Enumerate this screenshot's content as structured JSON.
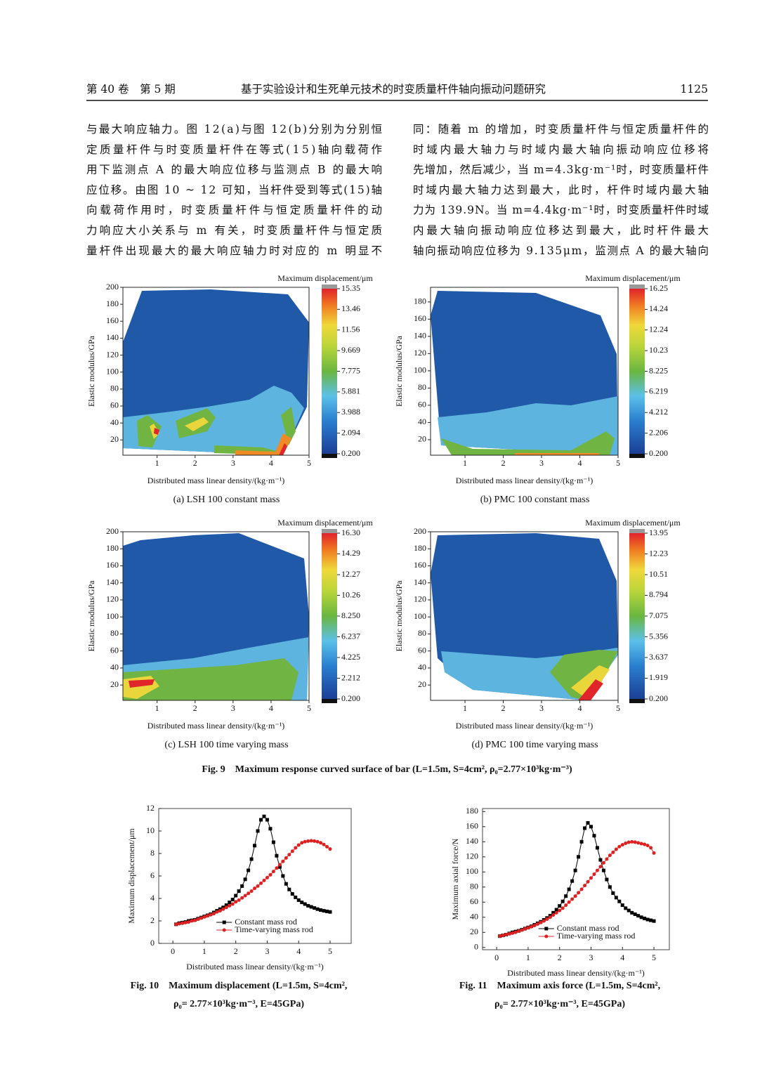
{
  "header": {
    "volume": "第 40 卷　第 5 期",
    "title": "基于实验设计和生死单元技术的时变质量杆件轴向振动问题研究",
    "page": "1125"
  },
  "text": {
    "left": [
      "与最大响应轴力。图 12(a)与图 12(b)分别为分别恒",
      "定质量杆件与时变质量杆件在等式(15)轴向载荷作",
      "用下监测点 A 的最大响应位移与监测点 B 的最大响",
      "应位移。由图 10 ~ 12 可知，当杆件受到等式(15)轴",
      "向载荷作用时，时变质量杆件与恒定质量杆件的动",
      "力响应大小关系与 m 有关，时变质量杆件与恒定质",
      "量杆件出现最大的最大响应轴力时对应的 m 明显不"
    ],
    "right": [
      "同：随着 m 的增加，时变质量杆件与恒定质量杆件的",
      "时域内最大轴力与时域内最大轴向振动响应位移将",
      "先增加，然后减少，当 m=4.3kg·m⁻¹时，时变质量杆件",
      "时域内最大轴力达到最大，此时，杆件时域内最大轴",
      "力为 139.9N。当 m=4.4kg·m⁻¹时，时变质量杆件时域",
      "内最大轴向振动响应位移达到最大，此时杆件最大",
      "轴向振动响应位移为 9.135μm，监测点 A 的最大轴向"
    ]
  },
  "figure9_caption": "Fig. 9　Maximum response curved surface of bar (L=1.5m, S=4cm², ρ₀=2.77×10³kg·m⁻³)",
  "chart_data": [
    {
      "type": "contour",
      "title": "(a) LSH 100 constant mass",
      "x_label": "Distributed mass linear density/(kg·m⁻¹)",
      "y_label": "Elastic modulus/GPa",
      "colorbar_label": "Maximum displacement/μm",
      "xlim": [
        0.1,
        5
      ],
      "xticks": [
        1,
        2,
        3,
        4,
        5
      ],
      "ylim": [
        2,
        200
      ],
      "yticks": [
        20,
        40,
        60,
        80,
        100,
        120,
        140,
        160,
        180,
        200
      ],
      "clim": [
        0.2,
        15.35
      ],
      "colorbar_ticks": [
        {
          "value": 0.2,
          "label": "0.200"
        },
        2.094,
        3.988,
        5.881,
        7.775,
        9.669,
        11.56,
        13.46,
        15.35
      ]
    },
    {
      "type": "contour",
      "title": "(b) PMC 100 constant mass",
      "x_label": "Distributed mass linear density/(kg·m⁻¹)",
      "y_label": "Elastic modulus/GPa",
      "colorbar_label": "Maximum displacement/μm",
      "xlim": [
        0.1,
        5
      ],
      "xticks": [
        1,
        2,
        3,
        4,
        5
      ],
      "ylim": [
        2,
        197
      ],
      "yticks": [
        20,
        40,
        60,
        80,
        100,
        120,
        140,
        160,
        180
      ],
      "clim": [
        0.2,
        16.25
      ],
      "colorbar_ticks": [
        {
          "value": 0.2,
          "label": "0.200"
        },
        2.206,
        4.212,
        6.219,
        8.225,
        10.23,
        12.24,
        14.24,
        16.25
      ]
    },
    {
      "type": "contour",
      "title": "(c) LSH 100 time varying mass",
      "x_label": "Distributed mass linear density/(kg·m⁻¹)",
      "y_label": "Elastic modulus/GPa",
      "colorbar_label": "Maximum displacement/μm",
      "xlim": [
        0.1,
        5
      ],
      "xticks": [
        1,
        2,
        3,
        4,
        5
      ],
      "ylim": [
        2,
        200
      ],
      "yticks": [
        20,
        40,
        60,
        80,
        100,
        120,
        140,
        160,
        180,
        200
      ],
      "clim": [
        0.2,
        16.3
      ],
      "colorbar_ticks": [
        {
          "value": 0.2,
          "label": "0.200"
        },
        2.212,
        4.225,
        6.237,
        {
          "value": 8.25,
          "label": "8.250"
        },
        10.26,
        12.27,
        14.29,
        {
          "value": 16.3,
          "label": "16.30"
        }
      ]
    },
    {
      "type": "contour",
      "title": "(d) PMC 100 time varying mass",
      "x_label": "Distributed mass linear density/(kg·m⁻¹)",
      "y_label": "Elastic modulus/GPa",
      "colorbar_label": "Maximum displacement/μm",
      "xlim": [
        0.1,
        5
      ],
      "xticks": [
        1,
        2,
        3,
        4,
        5
      ],
      "ylim": [
        2,
        200
      ],
      "yticks": [
        20,
        40,
        60,
        80,
        100,
        120,
        140,
        160,
        180,
        200
      ],
      "clim": [
        0.2,
        13.95
      ],
      "colorbar_ticks": [
        {
          "value": 0.2,
          "label": "0.200"
        },
        1.919,
        3.637,
        5.356,
        7.075,
        8.794,
        10.51,
        12.23,
        13.95
      ]
    },
    {
      "type": "line",
      "caption": [
        "Fig. 10　Maximum displacement (L=1.5m, S=4cm²,",
        "ρ₀= 2.77×10³kg·m⁻³, E=45GPa)"
      ],
      "x_label": "Distributed mass linear density/(kg·m⁻¹)",
      "y_label": "Maximum displacement/μm",
      "xlim": [
        -0.45,
        5.67
      ],
      "xticks": [
        0,
        1,
        2,
        3,
        4,
        5
      ],
      "ylim": [
        0,
        12
      ],
      "yticks": [
        0,
        2,
        4,
        6,
        8,
        10,
        12
      ],
      "legend": "lower right",
      "x": [
        0.1,
        0.2,
        0.3,
        0.4,
        0.5,
        0.6,
        0.7,
        0.8,
        0.9,
        1.0,
        1.1,
        1.2,
        1.3,
        1.4,
        1.5,
        1.6,
        1.7,
        1.8,
        1.9,
        2.0,
        2.1,
        2.2,
        2.3,
        2.4,
        2.5,
        2.6,
        2.7,
        2.8,
        2.9,
        3.0,
        3.1,
        3.2,
        3.3,
        3.4,
        3.5,
        3.6,
        3.7,
        3.8,
        3.9,
        4.0,
        4.1,
        4.2,
        4.3,
        4.4,
        4.5,
        4.6,
        4.7,
        4.8,
        4.9,
        5.0
      ],
      "series": [
        {
          "name": "Constant mass rod",
          "color": "#000000",
          "marker": "square",
          "values": [
            1.7,
            1.8,
            1.85,
            1.9,
            2.0,
            2.05,
            2.1,
            2.2,
            2.3,
            2.4,
            2.5,
            2.6,
            2.75,
            2.9,
            3.05,
            3.2,
            3.4,
            3.65,
            3.9,
            4.25,
            4.65,
            5.1,
            5.7,
            6.5,
            7.5,
            8.7,
            10.0,
            11.0,
            11.3,
            11.0,
            10.2,
            9.0,
            7.8,
            6.8,
            6.0,
            5.3,
            4.8,
            4.4,
            4.1,
            3.85,
            3.65,
            3.5,
            3.35,
            3.25,
            3.15,
            3.05,
            2.97,
            2.9,
            2.85,
            2.8
          ]
        },
        {
          "name": "Time-varying mass rod",
          "color": "#e02020",
          "marker": "circle",
          "values": [
            1.7,
            1.75,
            1.8,
            1.85,
            1.9,
            2.0,
            2.05,
            2.15,
            2.25,
            2.35,
            2.45,
            2.55,
            2.65,
            2.8,
            2.9,
            3.05,
            3.2,
            3.35,
            3.5,
            3.7,
            3.85,
            4.05,
            4.25,
            4.45,
            4.65,
            4.9,
            5.1,
            5.35,
            5.6,
            5.85,
            6.1,
            6.4,
            6.7,
            7.0,
            7.3,
            7.6,
            7.9,
            8.2,
            8.5,
            8.75,
            8.95,
            9.05,
            9.1,
            9.135,
            9.1,
            9.05,
            8.95,
            8.8,
            8.6,
            8.4
          ]
        }
      ]
    },
    {
      "type": "line",
      "caption": [
        "Fig. 11　Maximum axis force (L=1.5m, S=4cm²,",
        "ρ₀= 2.77×10³kg·m⁻³, E=45GPa)"
      ],
      "x_label": "Distributed mass linear density/(kg·m⁻¹)",
      "y_label": "Maximum axial force/N",
      "xlim": [
        -0.45,
        5.49
      ],
      "xticks": [
        0,
        1,
        2,
        3,
        4,
        5
      ],
      "ylim": [
        -3,
        184
      ],
      "yticks": [
        0,
        20,
        40,
        60,
        80,
        100,
        120,
        140,
        160,
        180
      ],
      "legend": "lower right",
      "x": [
        0.1,
        0.2,
        0.3,
        0.4,
        0.5,
        0.6,
        0.7,
        0.8,
        0.9,
        1.0,
        1.1,
        1.2,
        1.3,
        1.4,
        1.5,
        1.6,
        1.7,
        1.8,
        1.9,
        2.0,
        2.1,
        2.2,
        2.3,
        2.4,
        2.5,
        2.6,
        2.7,
        2.8,
        2.9,
        3.0,
        3.1,
        3.2,
        3.3,
        3.4,
        3.5,
        3.6,
        3.7,
        3.8,
        3.9,
        4.0,
        4.1,
        4.2,
        4.3,
        4.4,
        4.5,
        4.6,
        4.7,
        4.8,
        4.9,
        5.0
      ],
      "series": [
        {
          "name": "Constant mass rod",
          "color": "#000000",
          "marker": "square",
          "values": [
            15,
            16,
            17,
            18.5,
            20,
            21,
            22,
            23.5,
            25,
            26.5,
            28,
            30,
            32,
            34,
            36.5,
            39,
            42,
            46,
            50,
            55,
            61,
            68,
            77,
            88,
            102,
            120,
            140,
            158,
            165,
            160,
            148,
            132,
            116,
            102,
            90,
            80,
            72,
            66,
            61,
            56,
            52,
            49,
            46,
            44,
            42,
            40,
            38.5,
            37,
            36,
            35
          ]
        },
        {
          "name": "Time-varying mass rod",
          "color": "#e02020",
          "marker": "circle",
          "values": [
            15,
            16,
            17,
            18,
            19,
            20,
            21.5,
            23,
            24.5,
            26,
            27.5,
            29,
            31,
            33,
            35,
            37.5,
            40,
            43,
            46,
            49,
            52,
            56,
            60,
            64,
            68,
            72.5,
            77,
            82,
            87,
            92,
            97,
            102,
            107,
            112,
            117,
            122,
            126,
            130,
            133.5,
            136,
            138,
            139.3,
            139.9,
            139.5,
            138.5,
            137.5,
            136.5,
            135,
            132,
            125
          ]
        }
      ]
    }
  ]
}
